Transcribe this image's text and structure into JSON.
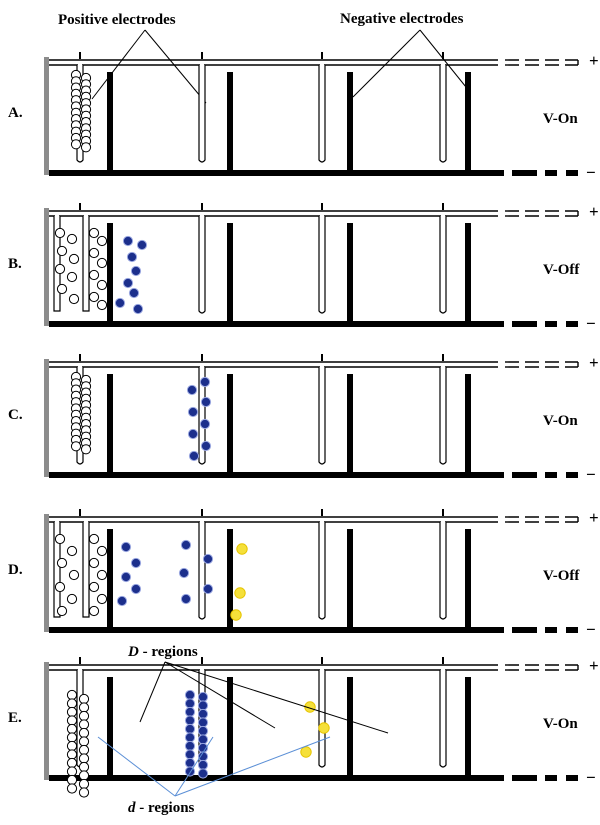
{
  "header": {
    "positive_label": "Positive electrodes",
    "negative_label": "Negative electrodes"
  },
  "annotations": {
    "D_letter": "D",
    "D_suffix": "- regions",
    "d_letter": "d",
    "d_suffix": "- regions"
  },
  "panels": [
    {
      "letter": "A.",
      "state": "V-On"
    },
    {
      "letter": "B.",
      "state": "V-Off"
    },
    {
      "letter": "C.",
      "state": "V-On"
    },
    {
      "letter": "D.",
      "state": "V-Off"
    },
    {
      "letter": "E.",
      "state": "V-On"
    }
  ],
  "rail_signs": {
    "plus": "+",
    "minus": "−"
  },
  "colors": {
    "white_particle": "#ffffff",
    "blue_particle": "#1c2f8c",
    "yellow_particle": "#f5e03a",
    "annotation_blue_line": "#5b8fd6",
    "chamber_wall": "#8c8c8c"
  }
}
